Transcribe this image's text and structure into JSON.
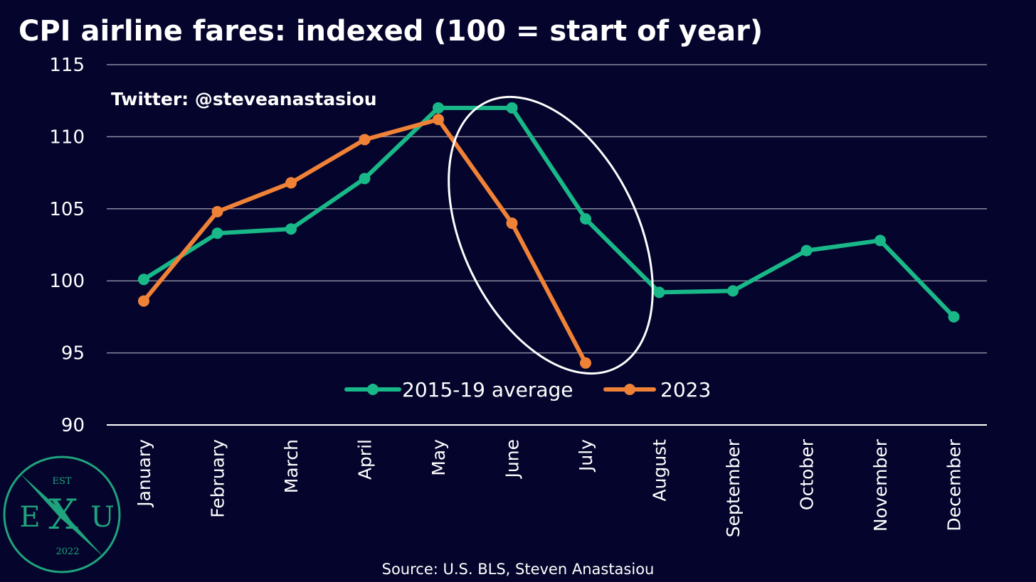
{
  "header": {
    "title": "CPI airline fares: indexed (100 = start of year)",
    "handle": "Twitter: @steveanastasiou"
  },
  "footer": {
    "source": "Source: U.S. BLS, Steven Anastasiou"
  },
  "logo": {
    "top_text": "EST",
    "left_letter": "E",
    "center_letter": "X",
    "right_letter": "U",
    "year": "2022",
    "color": "#1fa37c"
  },
  "colors": {
    "background": "#04042c",
    "grid": "#8a8aa0",
    "text": "#ffffff",
    "annotation": "#ffffff"
  },
  "chart_data": {
    "type": "line",
    "title": "CPI airline fares: indexed (100 = start of year)",
    "xlabel": "",
    "ylabel": "",
    "categories": [
      "January",
      "February",
      "March",
      "April",
      "May",
      "June",
      "July",
      "August",
      "September",
      "October",
      "November",
      "December"
    ],
    "ylim": [
      90,
      115
    ],
    "yticks": [
      "90",
      "95",
      "100",
      "105",
      "110",
      "115"
    ],
    "grid": true,
    "legend_position": "bottom-center",
    "annotation": "ellipse highlighting June–July",
    "series": [
      {
        "name": "2015-19 average",
        "color": "#19b888",
        "values": [
          100.1,
          103.3,
          103.6,
          107.1,
          112.0,
          112.0,
          104.3,
          99.2,
          99.3,
          102.1,
          102.8,
          97.5
        ]
      },
      {
        "name": "2023",
        "color": "#f08238",
        "values": [
          98.6,
          104.8,
          106.8,
          109.8,
          111.2,
          104.0,
          94.3,
          null,
          null,
          null,
          null,
          null
        ]
      }
    ]
  }
}
